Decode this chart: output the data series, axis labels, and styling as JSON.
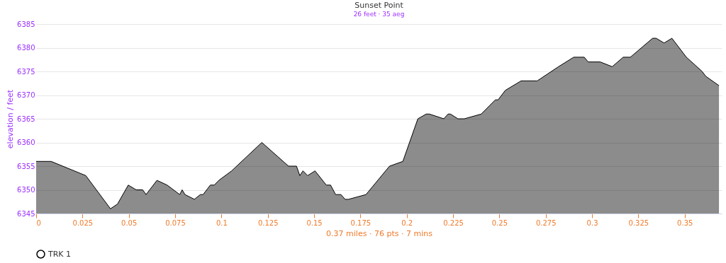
{
  "chart_data": {
    "type": "area",
    "title": "Sunset Point",
    "subtitle": "26 feet · 35 aeg",
    "ylabel": "elevation / feet",
    "annotations": [
      "0.37 miles · 76 pts · 7 mins"
    ],
    "x": [
      0,
      0.0081,
      0.0268,
      0.0401,
      0.0439,
      0.0497,
      0.054,
      0.0575,
      0.0593,
      0.0652,
      0.0707,
      0.0775,
      0.0788,
      0.0803,
      0.0854,
      0.0886,
      0.0901,
      0.094,
      0.0961,
      0.0986,
      0.1055,
      0.1218,
      0.1362,
      0.1405,
      0.1423,
      0.144,
      0.1465,
      0.1505,
      0.1566,
      0.1589,
      0.1616,
      0.1645,
      0.1667,
      0.1686,
      0.178,
      0.1907,
      0.1979,
      0.206,
      0.2105,
      0.2122,
      0.22,
      0.2223,
      0.2236,
      0.2276,
      0.2311,
      0.2402,
      0.2478,
      0.2493,
      0.2532,
      0.2617,
      0.2704,
      0.2819,
      0.2901,
      0.2958,
      0.2979,
      0.3044,
      0.3109,
      0.3168,
      0.3207,
      0.3327,
      0.3346,
      0.3389,
      0.3431,
      0.3509,
      0.3594,
      0.3613,
      0.3685
    ],
    "series": [
      {
        "name": "TRK 1",
        "color": "#000000",
        "values": [
          6356,
          6356,
          6353,
          6346,
          6347,
          6351,
          6350,
          6350,
          6349,
          6352,
          6351,
          6349,
          6350,
          6349,
          6348,
          6349,
          6349,
          6351,
          6351,
          6352,
          6354,
          6360,
          6355,
          6355,
          6353,
          6354,
          6353,
          6354,
          6351,
          6351,
          6349,
          6349,
          6348,
          6348,
          6349,
          6355,
          6356,
          6365,
          6366,
          6366,
          6365,
          6366,
          6366,
          6365,
          6365,
          6366,
          6369,
          6369,
          6371,
          6373,
          6373,
          6376,
          6378,
          6378,
          6377,
          6377,
          6376,
          6378,
          6378,
          6382,
          6382,
          6381,
          6382,
          6378,
          6375,
          6374,
          6372
        ]
      }
    ],
    "xlim": [
      0,
      0.37
    ],
    "xticks": [
      0,
      0.025,
      0.05,
      0.075,
      0.1,
      0.125,
      0.15,
      0.175,
      0.2,
      0.225,
      0.25,
      0.275,
      0.3,
      0.325,
      0.35
    ],
    "ylim": [
      6345,
      6385
    ],
    "yticks": [
      6345,
      6350,
      6355,
      6360,
      6365,
      6370,
      6375,
      6380,
      6385
    ],
    "grid": "y",
    "legend": "bottom",
    "marker": "none",
    "line_style": "solid"
  }
}
